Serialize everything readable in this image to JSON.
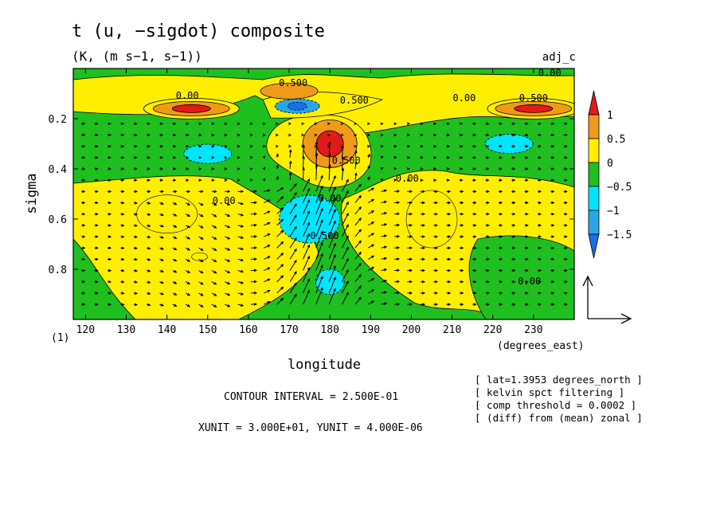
{
  "title": "t (u, −sigdot) composite",
  "subtitle": "(K, (m s−1, s−1))",
  "dataset": "adj_c",
  "frame_index": "(1)",
  "contour_info": "CONTOUR INTERVAL = 2.500E-01",
  "unit_info": "XUNIT = 3.000E+01, YUNIT = 4.000E-06",
  "notes": [
    "[ lat=1.3953 degrees_north ]",
    "[ kelvin spct filtering ]",
    "[ comp threshold = 0.0002 ]",
    "[ (diff) from (mean) zonal ]"
  ],
  "colors": {
    "lt_neg15": "#1a6fe6",
    "neg15_neg1": "#29a6e8",
    "neg1_neg05": "#00e5ff",
    "neg05_0": "#1fbf1f",
    "0_05": "#ffee00",
    "05_1": "#f09a1a",
    "gt_1": "#e21a1a"
  },
  "chart_data": {
    "type": "heatmap",
    "title": "t (u, −sigdot) composite",
    "subtitle": "(K, (m s−1, s−1))",
    "xlabel": "longitude",
    "xunits": "(degrees_east)",
    "ylabel": "sigma",
    "xlim": [
      117,
      240
    ],
    "ylim": [
      0.0,
      1.0
    ],
    "y_inverted": true,
    "x_ticks": [
      "120",
      "130",
      "140",
      "150",
      "160",
      "170",
      "180",
      "190",
      "200",
      "210",
      "220",
      "230"
    ],
    "y_ticks": [
      "0.2",
      "0.4",
      "0.6",
      "0.8"
    ],
    "contour_interval": 0.25,
    "colorbar": {
      "labels": [
        "1",
        "0.5",
        "0",
        "−0.5",
        "−1",
        "−1.5"
      ],
      "levels": [
        -1.5,
        -1,
        -0.5,
        0,
        0.5,
        1
      ]
    },
    "contour_labels": [
      {
        "text": "0.500",
        "lon": 171,
        "sigma": 0.07
      },
      {
        "text": "0.00",
        "lon": 145,
        "sigma": 0.12
      },
      {
        "text": "0.00",
        "lon": 234,
        "sigma": 0.03
      },
      {
        "text": "0.00",
        "lon": 213,
        "sigma": 0.13
      },
      {
        "text": "0.500",
        "lon": 230,
        "sigma": 0.13
      },
      {
        "text": "0.500",
        "lon": 186,
        "sigma": 0.14
      },
      {
        "text": "0.500",
        "lon": 184,
        "sigma": 0.38
      },
      {
        "text": "0.00",
        "lon": 199,
        "sigma": 0.45
      },
      {
        "text": "0.00",
        "lon": 180,
        "sigma": 0.53
      },
      {
        "text": "0.00",
        "lon": 154,
        "sigma": 0.54
      },
      {
        "text": "-0.500",
        "lon": 178,
        "sigma": 0.68
      },
      {
        "text": "0.00",
        "lon": 229,
        "sigma": 0.86
      }
    ],
    "field_features": [
      {
        "name": "warm anomaly west",
        "lon": 146,
        "sigma": 0.16,
        "value": 1.1
      },
      {
        "name": "warm anomaly east",
        "lon": 230,
        "sigma": 0.16,
        "value": 1.1
      },
      {
        "name": "warm anomaly center",
        "lon": 180,
        "sigma": 0.3,
        "value": 1.1
      },
      {
        "name": "warm band upper",
        "lon": 170,
        "sigma": 0.09,
        "value": 0.7
      },
      {
        "name": "cold anomaly upper",
        "lon": 172,
        "sigma": 0.15,
        "value": -1.3
      },
      {
        "name": "cold anomaly west",
        "lon": 150,
        "sigma": 0.34,
        "value": -0.8
      },
      {
        "name": "cold anomaly east",
        "lon": 224,
        "sigma": 0.3,
        "value": -0.8
      },
      {
        "name": "cold anomaly mid",
        "lon": 175,
        "sigma": 0.6,
        "value": -0.8
      },
      {
        "name": "cold anomaly low",
        "lon": 180,
        "sigma": 0.85,
        "value": -0.75
      }
    ]
  }
}
